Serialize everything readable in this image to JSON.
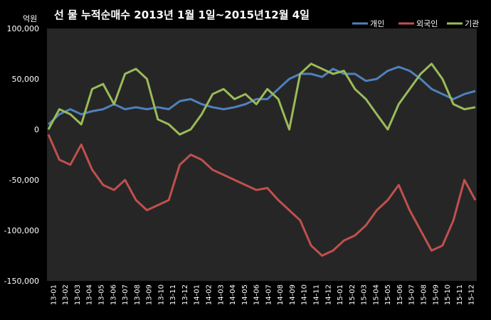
{
  "chart_data": {
    "type": "line",
    "title": "선 물 누적순매수 2013년 1월 1일~2015년12월 4일",
    "ylabel": "억원",
    "ylim": [
      -150000,
      100000
    ],
    "yticks": [
      100000,
      50000,
      0,
      -50000,
      -100000,
      -150000
    ],
    "ytick_labels": [
      "100,000",
      "50,000",
      "0",
      "-50,000",
      "-100,000",
      "-150,000"
    ],
    "xticks": [
      "13-01",
      "13-02",
      "13-03",
      "13-04",
      "13-05",
      "13-06",
      "13-07",
      "13-08",
      "13-09",
      "13-10",
      "13-11",
      "13-12",
      "14-01",
      "14-02",
      "14-03",
      "14-04",
      "14-05",
      "14-06",
      "14-07",
      "14-08",
      "14-09",
      "14-10",
      "14-11",
      "14-12",
      "15-01",
      "15-02",
      "15-03",
      "15-04",
      "15-05",
      "15-06",
      "15-07",
      "15-08",
      "15-09",
      "15-10",
      "15-11",
      "15-12"
    ],
    "legend_position": "top-right",
    "grid": false,
    "series": [
      {
        "name": "개인",
        "color": "#4f81bd",
        "values": [
          5000,
          15000,
          20000,
          15000,
          18000,
          20000,
          25000,
          20000,
          22000,
          20000,
          22000,
          20000,
          28000,
          30000,
          25000,
          22000,
          20000,
          22000,
          25000,
          30000,
          30000,
          40000,
          50000,
          55000,
          55000,
          52000,
          60000,
          55000,
          55000,
          48000,
          50000,
          58000,
          62000,
          58000,
          50000,
          40000,
          35000,
          30000,
          35000,
          38000
        ]
      },
      {
        "name": "외국인",
        "color": "#c0504d",
        "values": [
          -5000,
          -30000,
          -35000,
          -15000,
          -40000,
          -55000,
          -60000,
          -50000,
          -70000,
          -80000,
          -75000,
          -70000,
          -35000,
          -25000,
          -30000,
          -40000,
          -45000,
          -50000,
          -55000,
          -60000,
          -58000,
          -70000,
          -80000,
          -90000,
          -115000,
          -125000,
          -120000,
          -110000,
          -105000,
          -95000,
          -80000,
          -70000,
          -55000,
          -80000,
          -100000,
          -120000,
          -115000,
          -90000,
          -50000,
          -70000
        ]
      },
      {
        "name": "기관",
        "color": "#9bbb59",
        "values": [
          0,
          20000,
          15000,
          5000,
          40000,
          45000,
          25000,
          55000,
          60000,
          50000,
          10000,
          5000,
          -5000,
          0,
          15000,
          35000,
          40000,
          30000,
          35000,
          25000,
          40000,
          30000,
          0,
          55000,
          65000,
          60000,
          55000,
          58000,
          40000,
          30000,
          15000,
          0,
          25000,
          40000,
          55000,
          65000,
          50000,
          25000,
          20000,
          22000
        ]
      }
    ]
  }
}
